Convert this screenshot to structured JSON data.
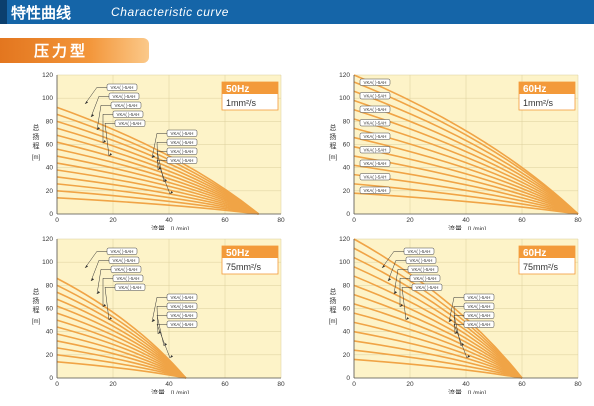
{
  "header": {
    "title": "特性曲线",
    "subtitle": "Characteristic curve",
    "bg_color": "#1565a8"
  },
  "section": {
    "label": "压力型",
    "color": "#ef8a2e"
  },
  "common": {
    "ylabel": "总扬程",
    "yunit": "[m]",
    "xlabel": "流量",
    "xunit": "[L/min]",
    "curve_color": "#f0a446",
    "plot_bg": "#fdf3c8",
    "freq_box_color": "#f39a3a"
  },
  "chart_data": [
    {
      "type": "line",
      "freq": "50Hz",
      "viscosity": "1mm²/s",
      "xlim": [
        0,
        80
      ],
      "ylim": [
        0,
        120
      ],
      "xticks": [
        0,
        20,
        40,
        60,
        80
      ],
      "yticks": [
        0,
        20,
        40,
        60,
        80,
        100,
        120
      ],
      "grid": true,
      "series": [
        {
          "x": [
            0,
            72
          ],
          "y": [
            92,
            0
          ]
        },
        {
          "x": [
            0,
            72
          ],
          "y": [
            86,
            0
          ]
        },
        {
          "x": [
            0,
            72
          ],
          "y": [
            80,
            0
          ]
        },
        {
          "x": [
            0,
            72
          ],
          "y": [
            74,
            0
          ]
        },
        {
          "x": [
            0,
            72
          ],
          "y": [
            68,
            0
          ]
        },
        {
          "x": [
            0,
            72
          ],
          "y": [
            62,
            0
          ]
        },
        {
          "x": [
            0,
            72
          ],
          "y": [
            56,
            0
          ]
        },
        {
          "x": [
            0,
            72
          ],
          "y": [
            50,
            0
          ]
        },
        {
          "x": [
            0,
            72
          ],
          "y": [
            44,
            0
          ]
        },
        {
          "x": [
            0,
            72
          ],
          "y": [
            38,
            0
          ]
        },
        {
          "x": [
            0,
            72
          ],
          "y": [
            32,
            0
          ]
        },
        {
          "x": [
            0,
            72
          ],
          "y": [
            26,
            0
          ]
        },
        {
          "x": [
            0,
            72
          ],
          "y": [
            20,
            0
          ]
        },
        {
          "x": [
            0,
            72
          ],
          "y": [
            14,
            0
          ]
        }
      ],
      "annotations": [
        "VKA(  )-5AH",
        "VKA(  )-5AH",
        "VKA(  )-5AH",
        "VKA(  )-5AH",
        "VKA(  )-5AH",
        "VKA(  )-5AH",
        "VKA(  )-5AH",
        "VKA(  )-5AH",
        "VKA(  )-5AH"
      ]
    },
    {
      "type": "line",
      "freq": "60Hz",
      "viscosity": "1mm²/s",
      "xlim": [
        0,
        80
      ],
      "ylim": [
        0,
        120
      ],
      "xticks": [
        0,
        20,
        40,
        60,
        80
      ],
      "yticks": [
        0,
        20,
        40,
        60,
        80,
        100,
        120
      ],
      "grid": true,
      "series": [
        {
          "x": [
            0,
            80
          ],
          "y": [
            120,
            0
          ]
        },
        {
          "x": [
            0,
            80
          ],
          "y": [
            114,
            0
          ]
        },
        {
          "x": [
            0,
            80
          ],
          "y": [
            106,
            0
          ]
        },
        {
          "x": [
            0,
            80
          ],
          "y": [
            98,
            0
          ]
        },
        {
          "x": [
            0,
            80
          ],
          "y": [
            90,
            0
          ]
        },
        {
          "x": [
            0,
            80
          ],
          "y": [
            82,
            0
          ]
        },
        {
          "x": [
            0,
            80
          ],
          "y": [
            74,
            0
          ]
        },
        {
          "x": [
            0,
            80
          ],
          "y": [
            66,
            0
          ]
        },
        {
          "x": [
            0,
            80
          ],
          "y": [
            58,
            0
          ]
        },
        {
          "x": [
            0,
            80
          ],
          "y": [
            50,
            0
          ]
        },
        {
          "x": [
            0,
            80
          ],
          "y": [
            42,
            0
          ]
        },
        {
          "x": [
            0,
            80
          ],
          "y": [
            34,
            0
          ]
        },
        {
          "x": [
            0,
            80
          ],
          "y": [
            26,
            0
          ]
        },
        {
          "x": [
            0,
            80
          ],
          "y": [
            18,
            0
          ]
        }
      ],
      "annotations": [
        "VKA(  )-5AH",
        "VKA(  )-5AH",
        "VKA(  )-5AH",
        "VKA(  )-5AH",
        "VKA(  )-5AH",
        "VKA(  )-5AH",
        "VKA(  )-5AH",
        "VKA(  )-5AH",
        "VKA(  )-5AH"
      ]
    },
    {
      "type": "line",
      "freq": "50Hz",
      "viscosity": "75mm²/s",
      "xlim": [
        0,
        80
      ],
      "ylim": [
        0,
        120
      ],
      "xticks": [
        0,
        20,
        40,
        60,
        80
      ],
      "yticks": [
        0,
        20,
        40,
        60,
        80,
        100,
        120
      ],
      "grid": true,
      "series": [
        {
          "x": [
            0,
            46
          ],
          "y": [
            86,
            0
          ]
        },
        {
          "x": [
            0,
            46
          ],
          "y": [
            80,
            0
          ]
        },
        {
          "x": [
            0,
            46
          ],
          "y": [
            74,
            0
          ]
        },
        {
          "x": [
            0,
            46
          ],
          "y": [
            68,
            0
          ]
        },
        {
          "x": [
            0,
            46
          ],
          "y": [
            62,
            0
          ]
        },
        {
          "x": [
            0,
            46
          ],
          "y": [
            56,
            0
          ]
        },
        {
          "x": [
            0,
            46
          ],
          "y": [
            50,
            0
          ]
        },
        {
          "x": [
            0,
            46
          ],
          "y": [
            44,
            0
          ]
        },
        {
          "x": [
            0,
            46
          ],
          "y": [
            38,
            0
          ]
        },
        {
          "x": [
            0,
            46
          ],
          "y": [
            32,
            0
          ]
        },
        {
          "x": [
            0,
            46
          ],
          "y": [
            26,
            0
          ]
        },
        {
          "x": [
            0,
            46
          ],
          "y": [
            20,
            0
          ]
        },
        {
          "x": [
            0,
            46
          ],
          "y": [
            14,
            0
          ]
        }
      ],
      "annotations": [
        "VKA(  )-5AH",
        "VKA(  )-5AH",
        "VKA(  )-5AH",
        "VKA(  )-5AH",
        "VKA(  )-5AH",
        "VKA(  )-5AH",
        "VKA(  )-5AH",
        "VKA(  )-5AH",
        "VKA(  )-5AH"
      ]
    },
    {
      "type": "line",
      "freq": "60Hz",
      "viscosity": "75mm²/s",
      "xlim": [
        0,
        80
      ],
      "ylim": [
        0,
        120
      ],
      "xticks": [
        0,
        20,
        40,
        60,
        80
      ],
      "yticks": [
        0,
        20,
        40,
        60,
        80,
        100,
        120
      ],
      "grid": true,
      "series": [
        {
          "x": [
            0,
            60
          ],
          "y": [
            120,
            0
          ]
        },
        {
          "x": [
            0,
            60
          ],
          "y": [
            112,
            0
          ]
        },
        {
          "x": [
            0,
            60
          ],
          "y": [
            104,
            0
          ]
        },
        {
          "x": [
            0,
            60
          ],
          "y": [
            96,
            0
          ]
        },
        {
          "x": [
            0,
            60
          ],
          "y": [
            88,
            0
          ]
        },
        {
          "x": [
            0,
            60
          ],
          "y": [
            80,
            0
          ]
        },
        {
          "x": [
            0,
            60
          ],
          "y": [
            72,
            0
          ]
        },
        {
          "x": [
            0,
            60
          ],
          "y": [
            64,
            0
          ]
        },
        {
          "x": [
            0,
            60
          ],
          "y": [
            56,
            0
          ]
        },
        {
          "x": [
            0,
            60
          ],
          "y": [
            48,
            0
          ]
        },
        {
          "x": [
            0,
            60
          ],
          "y": [
            40,
            0
          ]
        },
        {
          "x": [
            0,
            60
          ],
          "y": [
            32,
            0
          ]
        },
        {
          "x": [
            0,
            60
          ],
          "y": [
            24,
            0
          ]
        },
        {
          "x": [
            0,
            60
          ],
          "y": [
            16,
            0
          ]
        }
      ],
      "annotations": [
        "VKA(  )-5AH",
        "VKA(  )-5AH",
        "VKA(  )-5AH",
        "VKA(  )-5AH",
        "VKA(  )-5AH",
        "VKA(  )-5AH",
        "VKA(  )-5AH",
        "VKA(  )-5AH",
        "VKA(  )-5AH"
      ]
    }
  ]
}
